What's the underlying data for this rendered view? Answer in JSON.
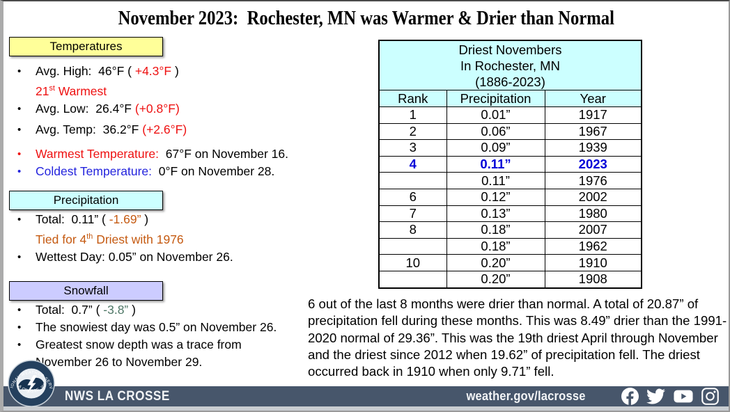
{
  "ui": {
    "bullet_char": "•"
  },
  "title": "November 2023:  Rochester, MN was Warmer & Drier than Normal",
  "colors": {
    "red": "#ee1111",
    "blue": "#2424dd",
    "orange": "#c55a11",
    "snow_departure": "#4e7766",
    "highlight_blue": "#0000d8",
    "temperatures_header_bg": "#ffff99",
    "precipitation_header_bg": "#ccffff",
    "snowfall_header_bg": "#ccccff",
    "table_header_bg": "#ccffff",
    "footer_bar_bg": "#47566b"
  },
  "sections": {
    "temperatures": {
      "header": "Temperatures",
      "items": [
        {
          "bullet": "#000000",
          "segments": [
            {
              "t": "Avg. High:  46°F ( "
            },
            {
              "t": "+4.3°F",
              "c": "#ee1111"
            },
            {
              "t": " )"
            }
          ]
        },
        {
          "segments": [
            {
              "t": "21",
              "c": "#ee1111"
            },
            {
              "t": "st",
              "c": "#ee1111",
              "sup": true
            },
            {
              "t": " Warmest",
              "c": "#ee1111"
            }
          ]
        },
        {
          "bullet": "#000000",
          "segments": [
            {
              "t": "Avg. Low:  26.4°F "
            },
            {
              "t": "(+0.8°F)",
              "c": "#ee1111"
            }
          ]
        },
        {
          "bullet": "#000000",
          "segments": [
            {
              "t": "Avg. Temp:  36.2°F "
            },
            {
              "t": "(+2.6°F)",
              "c": "#ee1111"
            }
          ]
        },
        {
          "bullet": "#ee1111",
          "segments": [
            {
              "t": "Warmest Temperature:",
              "c": "#ee1111"
            },
            {
              "t": "  67°F on November 16."
            }
          ]
        },
        {
          "bullet": "#2424dd",
          "segments": [
            {
              "t": "Coldest Temperature:",
              "c": "#2424dd"
            },
            {
              "t": "  0°F on November 28."
            }
          ]
        }
      ]
    },
    "precipitation": {
      "header": "Precipitation",
      "items": [
        {
          "bullet": "#000000",
          "segments": [
            {
              "t": "Total:  0.11” ( "
            },
            {
              "t": "-1.69”",
              "c": "#c55a11"
            },
            {
              "t": " )"
            }
          ]
        },
        {
          "segments": [
            {
              "t": "Tied for 4",
              "c": "#c55a11"
            },
            {
              "t": "th",
              "c": "#c55a11",
              "sup": true
            },
            {
              "t": " Driest with 1976",
              "c": "#c55a11"
            }
          ]
        },
        {
          "bullet": "#000000",
          "segments": [
            {
              "t": "Wettest Day: 0.05” on November 26."
            }
          ]
        }
      ]
    },
    "snowfall": {
      "header": "Snowfall",
      "items": [
        {
          "bullet": "#000000",
          "segments": [
            {
              "t": "Total:  0.7” ( "
            },
            {
              "t": "-3.8”",
              "c": "#4e7766"
            },
            {
              "t": " )"
            }
          ]
        },
        {
          "bullet": "#000000",
          "segments": [
            {
              "t": "The snowiest day was 0.5” on November 26."
            }
          ]
        },
        {
          "bullet": "#000000",
          "segments": [
            {
              "t": "Greatest snow depth was a trace from November 26 to November 29."
            }
          ]
        }
      ]
    }
  },
  "table": {
    "title_lines": [
      "Driest Novembers",
      "In Rochester, MN",
      "(1886-2023)"
    ],
    "columns": [
      "Rank",
      "Precipitation",
      "Year"
    ],
    "rows": [
      {
        "rank": "1",
        "precip": "0.01”",
        "year": "1917"
      },
      {
        "rank": "2",
        "precip": "0.06”",
        "year": "1967"
      },
      {
        "rank": "3",
        "precip": "0.09”",
        "year": "1939"
      },
      {
        "rank": "4",
        "precip": "0.11”",
        "year": "2023",
        "highlight": true
      },
      {
        "rank": "",
        "precip": "0.11”",
        "year": "1976"
      },
      {
        "rank": "6",
        "precip": "0.12”",
        "year": "2002"
      },
      {
        "rank": "7",
        "precip": "0.13”",
        "year": "1980"
      },
      {
        "rank": "8",
        "precip": "0.18”",
        "year": "2007"
      },
      {
        "rank": "",
        "precip": "0.18”",
        "year": "1962"
      },
      {
        "rank": "10",
        "precip": "0.20”",
        "year": "1910"
      },
      {
        "rank": "",
        "precip": "0.20”",
        "year": "1908"
      }
    ]
  },
  "summary": "6 out of the last 8 months were drier than normal. A total of 20.87” of precipitation fell during these months. This was 8.49” drier than the 1991-2020 normal of 29.36”. This was the 19th driest April through November and the driest since 2012 when 19.62” of precipitation fell. The driest occurred back in 1910 when only 9.71” fell.",
  "footer": {
    "brand": "NWS LA CROSSE",
    "url": "weather.gov/lacrosse",
    "logo_top_text": "NATIONAL WEATHER SERVICE",
    "logo_bottom_text": "LA CROSSE, WI",
    "social": [
      "facebook",
      "twitter",
      "youtube",
      "instagram"
    ]
  }
}
